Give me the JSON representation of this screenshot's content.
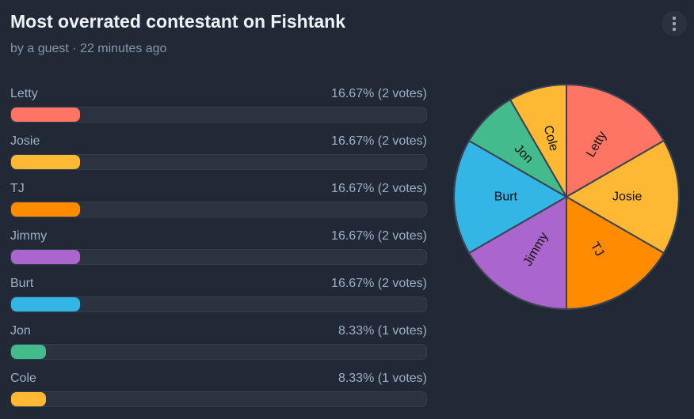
{
  "header": {
    "title": "Most overrated contestant on Fishtank",
    "byline": "by a guest · 22 minutes ago",
    "menu_icon": "kebab-menu-icon"
  },
  "chart_data": {
    "type": "pie",
    "title": "Most overrated contestant on Fishtank",
    "categories": [
      "Letty",
      "Josie",
      "TJ",
      "Jimmy",
      "Burt",
      "Jon",
      "Cole"
    ],
    "values": [
      2,
      2,
      2,
      2,
      2,
      1,
      1
    ],
    "percent_labels": [
      "16.67% (2 votes)",
      "16.67% (2 votes)",
      "16.67% (2 votes)",
      "16.67% (2 votes)",
      "16.67% (2 votes)",
      "8.33% (1 votes)",
      "8.33% (1 votes)"
    ],
    "percents": [
      16.67,
      16.67,
      16.67,
      16.67,
      16.67,
      8.33,
      8.33
    ],
    "colors": [
      "#ff7563",
      "#ffb833",
      "#ff8c00",
      "#aa66cc",
      "#33b5e5",
      "#44bb8d",
      "#ffb833"
    ],
    "legend": "none"
  }
}
